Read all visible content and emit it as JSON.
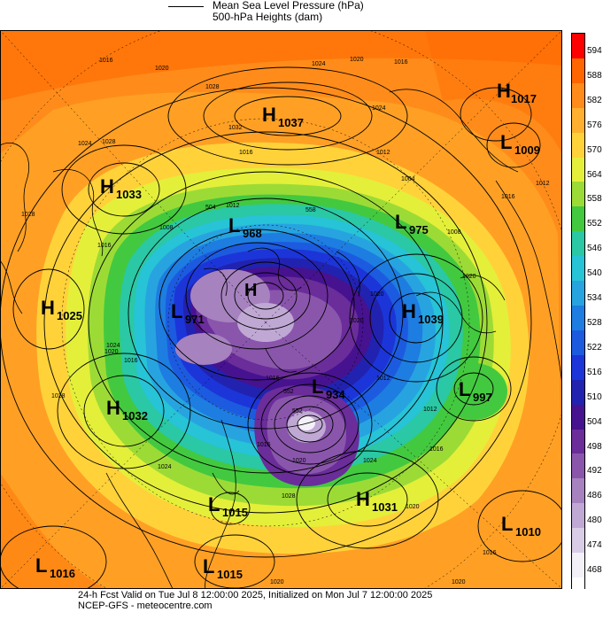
{
  "legend": {
    "line1": "Mean Sea Level Pressure (hPa)",
    "line2": "500-hPa Heights (dam)"
  },
  "colorbar": {
    "levels": [
      "594",
      "588",
      "582",
      "576",
      "570",
      "564",
      "558",
      "552",
      "546",
      "540",
      "534",
      "528",
      "522",
      "516",
      "510",
      "504",
      "498",
      "492",
      "486",
      "480",
      "474",
      "468"
    ],
    "colors": [
      "#ff0000",
      "#ff6600",
      "#ff8c1a",
      "#ffb02e",
      "#ffd23a",
      "#e4ef3a",
      "#9cdb36",
      "#43c93f",
      "#2ac8a4",
      "#27c3d6",
      "#27a4e0",
      "#1e7de0",
      "#1c5be0",
      "#1c35d8",
      "#2222b0",
      "#46128f",
      "#6a2d9a",
      "#8a56ac",
      "#a682be",
      "#c0a8d4",
      "#d8cce6",
      "#f4f0f8"
    ]
  },
  "systems": [
    {
      "type": "H",
      "value": "1017"
    },
    {
      "type": "H",
      "value": "1037"
    },
    {
      "type": "L",
      "value": "1009"
    },
    {
      "type": "H",
      "value": "1033"
    },
    {
      "type": "L",
      "value": "968"
    },
    {
      "type": "L",
      "value": "975"
    },
    {
      "type": "H",
      "value": "1025"
    },
    {
      "type": "L",
      "value": "971"
    },
    {
      "type": "H",
      "value": "1039"
    },
    {
      "type": "H",
      "value": "1032"
    },
    {
      "type": "L",
      "value": "934"
    },
    {
      "type": "L",
      "value": "997"
    },
    {
      "type": "L",
      "value": "1015"
    },
    {
      "type": "H",
      "value": "1031"
    },
    {
      "type": "L",
      "value": "1010"
    },
    {
      "type": "L",
      "value": "1016"
    },
    {
      "type": "L",
      "value": "1015"
    }
  ],
  "isobar_labels": [
    "1016",
    "1020",
    "1024",
    "1020",
    "1016",
    "1028",
    "1032",
    "1024",
    "1028",
    "1016",
    "1012",
    "1004",
    "1008",
    "1020",
    "1028",
    "1024",
    "1012",
    "1016",
    "1020",
    "1016",
    "1024",
    "1028",
    "1020",
    "1016",
    "1012",
    "1008",
    "1016",
    "1020",
    "1024",
    "1028",
    "1024",
    "1020",
    "1020",
    "1012",
    "1016",
    "1012",
    "1020",
    "1016",
    "1020",
    "1016"
  ],
  "height_labels": [
    "552",
    "552",
    "558",
    "504"
  ],
  "footer": {
    "line1": "24-h Fcst Valid on Tue Jul  8 12:00:00 2025, Initialized on Mon Jul  7 12:00:00 2025",
    "line2": "NCEP-GFS  - meteocentre.com"
  }
}
